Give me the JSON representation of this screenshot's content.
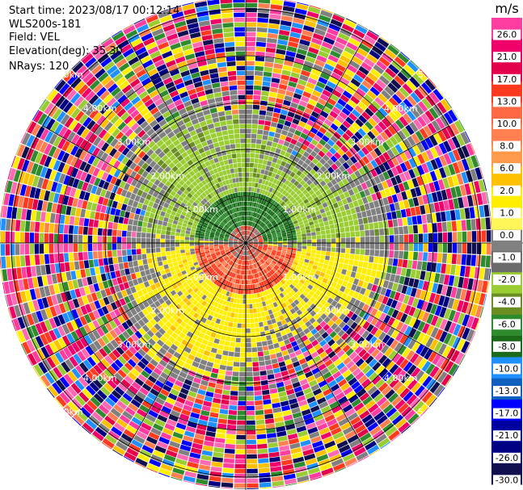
{
  "header": {
    "start_time": "Start time: 2023/08/17 00:12:14",
    "instrument": "WLS200s-181",
    "field": "Field: VEL",
    "elevation": "Elevation(deg): 35.30",
    "nrays": "NRays: 120"
  },
  "ring_labels": [
    "1.00km",
    "2.00km",
    "3.00km",
    "4.00km",
    "5.00km"
  ],
  "colorbar": {
    "unit": "m/s",
    "ticks": [
      "26.0",
      "21.0",
      "17.0",
      "13.0",
      "10.0",
      "8.0",
      "6.0",
      "2.0",
      "1.0",
      "0.0",
      "-1.0",
      "-2.0",
      "-4.0",
      "-6.0",
      "-8.0",
      "-10.0",
      "-13.0",
      "-17.0",
      "-21.0",
      "-26.0",
      "-30.0"
    ],
    "colors": [
      "#ff3ca0",
      "#f0006a",
      "#e4004a",
      "#ff3a1e",
      "#ff6a44",
      "#ff7f50",
      "#ff9a4a",
      "#ffc000",
      "#ffee00",
      "#fff65a",
      "#808080",
      "#6b6b6b",
      "#9acd32",
      "#6b8e23",
      "#2e8b2e",
      "#1a6a1a",
      "#1e90ff",
      "#1060c0",
      "#0000ff",
      "#0000a0",
      "#000080",
      "#101050"
    ]
  }
}
